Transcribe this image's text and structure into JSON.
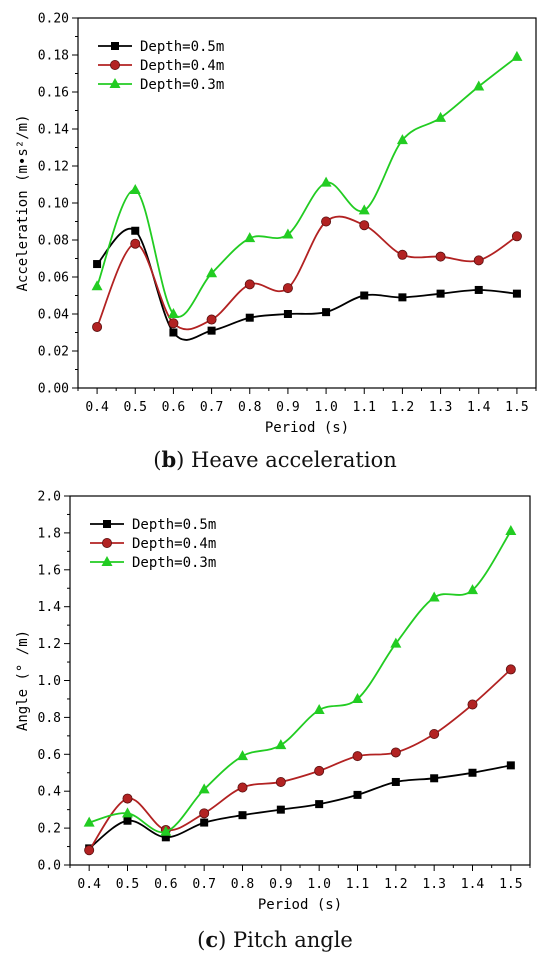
{
  "chart_data": [
    {
      "type": "line",
      "caption_letter": "b",
      "caption_text": "Heave acceleration",
      "xlabel": "Period (s)",
      "ylabel": "Acceleration (m•s²/m)",
      "xlim": [
        0.35,
        1.55
      ],
      "ylim": [
        0,
        0.2
      ],
      "x_ticks": [
        "0.4",
        "0.5",
        "0.6",
        "0.7",
        "0.8",
        "0.9",
        "1.0",
        "1.1",
        "1.2",
        "1.3",
        "1.4",
        "1.5"
      ],
      "y_ticks": [
        "0.00",
        "0.02",
        "0.04",
        "0.06",
        "0.08",
        "0.10",
        "0.12",
        "0.14",
        "0.16",
        "0.18",
        "0.20"
      ],
      "legend_position": "top-left",
      "grid": false,
      "x": [
        0.4,
        0.5,
        0.6,
        0.7,
        0.8,
        0.9,
        1.0,
        1.1,
        1.2,
        1.3,
        1.4,
        1.5
      ],
      "series": [
        {
          "name": "Depth=0.5m",
          "color": "#000000",
          "marker": "square",
          "values": [
            0.067,
            0.085,
            0.03,
            0.031,
            0.038,
            0.04,
            0.041,
            0.05,
            0.049,
            0.051,
            0.053,
            0.051
          ]
        },
        {
          "name": "Depth=0.4m",
          "color": "#b22222",
          "marker": "circle",
          "values": [
            0.033,
            0.078,
            0.035,
            0.037,
            0.056,
            0.054,
            0.09,
            0.088,
            0.072,
            0.071,
            0.069,
            0.082
          ]
        },
        {
          "name": "Depth=0.3m",
          "color": "#22cc22",
          "marker": "triangle",
          "values": [
            0.055,
            0.107,
            0.04,
            0.062,
            0.081,
            0.083,
            0.111,
            0.096,
            0.134,
            0.146,
            0.163,
            0.179
          ]
        }
      ]
    },
    {
      "type": "line",
      "caption_letter": "c",
      "caption_text": "Pitch angle",
      "xlabel": "Period (s)",
      "ylabel": "Angle (° /m)",
      "xlim": [
        0.35,
        1.55
      ],
      "ylim": [
        0,
        2.0
      ],
      "x_ticks": [
        "0.4",
        "0.5",
        "0.6",
        "0.7",
        "0.8",
        "0.9",
        "1.0",
        "1.1",
        "1.2",
        "1.3",
        "1.4",
        "1.5"
      ],
      "y_ticks": [
        "0.0",
        "0.2",
        "0.4",
        "0.6",
        "0.8",
        "1.0",
        "1.2",
        "1.4",
        "1.6",
        "1.8",
        "2.0"
      ],
      "legend_position": "top-left",
      "grid": false,
      "x": [
        0.4,
        0.5,
        0.6,
        0.7,
        0.8,
        0.9,
        1.0,
        1.1,
        1.2,
        1.3,
        1.4,
        1.5
      ],
      "series": [
        {
          "name": "Depth=0.5m",
          "color": "#000000",
          "marker": "square",
          "values": [
            0.09,
            0.24,
            0.15,
            0.23,
            0.27,
            0.3,
            0.33,
            0.38,
            0.45,
            0.47,
            0.5,
            0.54
          ]
        },
        {
          "name": "Depth=0.4m",
          "color": "#b22222",
          "marker": "circle",
          "values": [
            0.08,
            0.36,
            0.19,
            0.28,
            0.42,
            0.45,
            0.51,
            0.59,
            0.61,
            0.71,
            0.87,
            1.06
          ]
        },
        {
          "name": "Depth=0.3m",
          "color": "#22cc22",
          "marker": "triangle",
          "values": [
            0.23,
            0.28,
            0.18,
            0.41,
            0.59,
            0.65,
            0.84,
            0.9,
            1.2,
            1.45,
            1.49,
            1.81
          ]
        }
      ]
    }
  ]
}
